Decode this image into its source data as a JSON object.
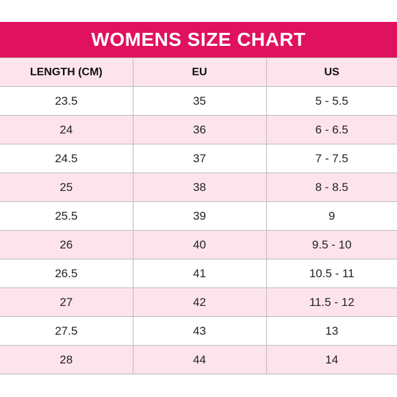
{
  "title": "WOMENS SIZE CHART",
  "colors": {
    "title_background": "#e0115f",
    "title_text": "#ffffff",
    "stripe_row": "#fde4ec",
    "plain_row": "#ffffff"
  },
  "table": {
    "headers": [
      "LENGTH (CM)",
      "EU",
      "US"
    ],
    "rows": [
      [
        "23.5",
        "35",
        "5 - 5.5"
      ],
      [
        "24",
        "36",
        "6 - 6.5"
      ],
      [
        "24.5",
        "37",
        "7 - 7.5"
      ],
      [
        "25",
        "38",
        "8 - 8.5"
      ],
      [
        "25.5",
        "39",
        "9"
      ],
      [
        "26",
        "40",
        "9.5 - 10"
      ],
      [
        "26.5",
        "41",
        "10.5 - 11"
      ],
      [
        "27",
        "42",
        "11.5 - 12"
      ],
      [
        "27.5",
        "43",
        "13"
      ],
      [
        "28",
        "44",
        "14"
      ]
    ]
  }
}
